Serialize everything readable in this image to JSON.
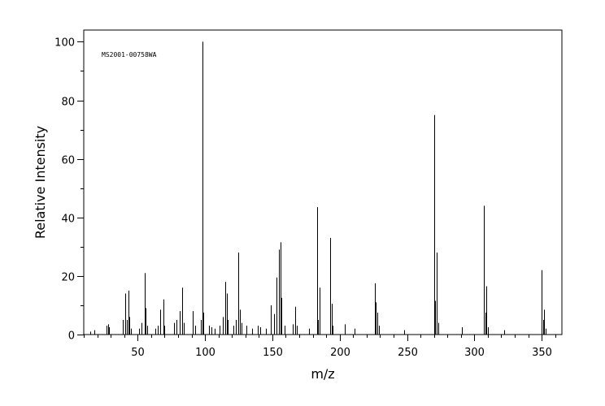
{
  "chart_data": {
    "type": "bar",
    "title": "",
    "annotation": "MS2001-00758WA",
    "xlabel": "m/z",
    "ylabel": "Relative Intensity",
    "xlim": [
      10,
      365
    ],
    "ylim": [
      0,
      104
    ],
    "x_ticks": [
      50,
      100,
      150,
      200,
      250,
      300,
      350
    ],
    "y_ticks": [
      0,
      20,
      40,
      60,
      80,
      100
    ],
    "x_minor_step": 10,
    "y_minor_step": 10,
    "grid": false,
    "legend": "none",
    "bar_color": "#000000",
    "peaks": [
      {
        "mz": 15,
        "intensity": 1
      },
      {
        "mz": 18,
        "intensity": 1.5
      },
      {
        "mz": 27,
        "intensity": 3
      },
      {
        "mz": 28,
        "intensity": 3.5
      },
      {
        "mz": 29,
        "intensity": 2.5
      },
      {
        "mz": 39,
        "intensity": 5
      },
      {
        "mz": 41,
        "intensity": 14
      },
      {
        "mz": 42,
        "intensity": 5
      },
      {
        "mz": 43,
        "intensity": 15
      },
      {
        "mz": 44,
        "intensity": 6
      },
      {
        "mz": 45,
        "intensity": 2
      },
      {
        "mz": 51,
        "intensity": 2
      },
      {
        "mz": 53,
        "intensity": 4
      },
      {
        "mz": 55,
        "intensity": 21
      },
      {
        "mz": 56,
        "intensity": 9
      },
      {
        "mz": 57,
        "intensity": 3
      },
      {
        "mz": 63,
        "intensity": 2
      },
      {
        "mz": 65,
        "intensity": 3
      },
      {
        "mz": 67,
        "intensity": 8.5
      },
      {
        "mz": 69,
        "intensity": 12
      },
      {
        "mz": 70,
        "intensity": 3
      },
      {
        "mz": 77,
        "intensity": 4
      },
      {
        "mz": 79,
        "intensity": 5
      },
      {
        "mz": 81,
        "intensity": 8
      },
      {
        "mz": 83,
        "intensity": 16
      },
      {
        "mz": 84,
        "intensity": 4
      },
      {
        "mz": 91,
        "intensity": 8
      },
      {
        "mz": 93,
        "intensity": 3
      },
      {
        "mz": 97,
        "intensity": 5
      },
      {
        "mz": 98,
        "intensity": 100
      },
      {
        "mz": 99,
        "intensity": 7.5
      },
      {
        "mz": 103,
        "intensity": 3
      },
      {
        "mz": 105,
        "intensity": 2.5
      },
      {
        "mz": 107,
        "intensity": 2
      },
      {
        "mz": 111,
        "intensity": 3
      },
      {
        "mz": 113,
        "intensity": 6
      },
      {
        "mz": 115,
        "intensity": 18
      },
      {
        "mz": 116,
        "intensity": 14
      },
      {
        "mz": 117,
        "intensity": 5
      },
      {
        "mz": 121,
        "intensity": 3
      },
      {
        "mz": 123,
        "intensity": 5
      },
      {
        "mz": 125,
        "intensity": 28
      },
      {
        "mz": 126,
        "intensity": 8.5
      },
      {
        "mz": 127,
        "intensity": 4
      },
      {
        "mz": 131,
        "intensity": 3
      },
      {
        "mz": 135,
        "intensity": 2
      },
      {
        "mz": 139,
        "intensity": 3
      },
      {
        "mz": 141,
        "intensity": 2.5
      },
      {
        "mz": 145,
        "intensity": 2
      },
      {
        "mz": 149,
        "intensity": 10
      },
      {
        "mz": 151,
        "intensity": 7
      },
      {
        "mz": 153,
        "intensity": 19.5
      },
      {
        "mz": 155,
        "intensity": 29
      },
      {
        "mz": 156,
        "intensity": 31.5
      },
      {
        "mz": 157,
        "intensity": 12.5
      },
      {
        "mz": 159,
        "intensity": 3
      },
      {
        "mz": 165,
        "intensity": 3.5
      },
      {
        "mz": 167,
        "intensity": 9.5
      },
      {
        "mz": 168,
        "intensity": 3
      },
      {
        "mz": 177,
        "intensity": 2
      },
      {
        "mz": 183,
        "intensity": 43.5
      },
      {
        "mz": 184,
        "intensity": 5
      },
      {
        "mz": 185,
        "intensity": 16
      },
      {
        "mz": 193,
        "intensity": 33
      },
      {
        "mz": 194,
        "intensity": 10.5
      },
      {
        "mz": 195,
        "intensity": 3
      },
      {
        "mz": 204,
        "intensity": 3.5
      },
      {
        "mz": 211,
        "intensity": 2
      },
      {
        "mz": 226,
        "intensity": 17.5
      },
      {
        "mz": 227,
        "intensity": 11
      },
      {
        "mz": 228,
        "intensity": 7.5
      },
      {
        "mz": 229,
        "intensity": 3
      },
      {
        "mz": 248,
        "intensity": 1.5
      },
      {
        "mz": 270,
        "intensity": 75
      },
      {
        "mz": 271,
        "intensity": 11.5
      },
      {
        "mz": 272,
        "intensity": 28
      },
      {
        "mz": 273,
        "intensity": 4
      },
      {
        "mz": 291,
        "intensity": 2.5
      },
      {
        "mz": 307,
        "intensity": 44
      },
      {
        "mz": 308,
        "intensity": 7.5
      },
      {
        "mz": 309,
        "intensity": 16.5
      },
      {
        "mz": 310,
        "intensity": 2.5
      },
      {
        "mz": 322,
        "intensity": 1.5
      },
      {
        "mz": 350,
        "intensity": 22
      },
      {
        "mz": 351,
        "intensity": 5
      },
      {
        "mz": 352,
        "intensity": 8.5
      },
      {
        "mz": 353,
        "intensity": 2
      }
    ]
  }
}
